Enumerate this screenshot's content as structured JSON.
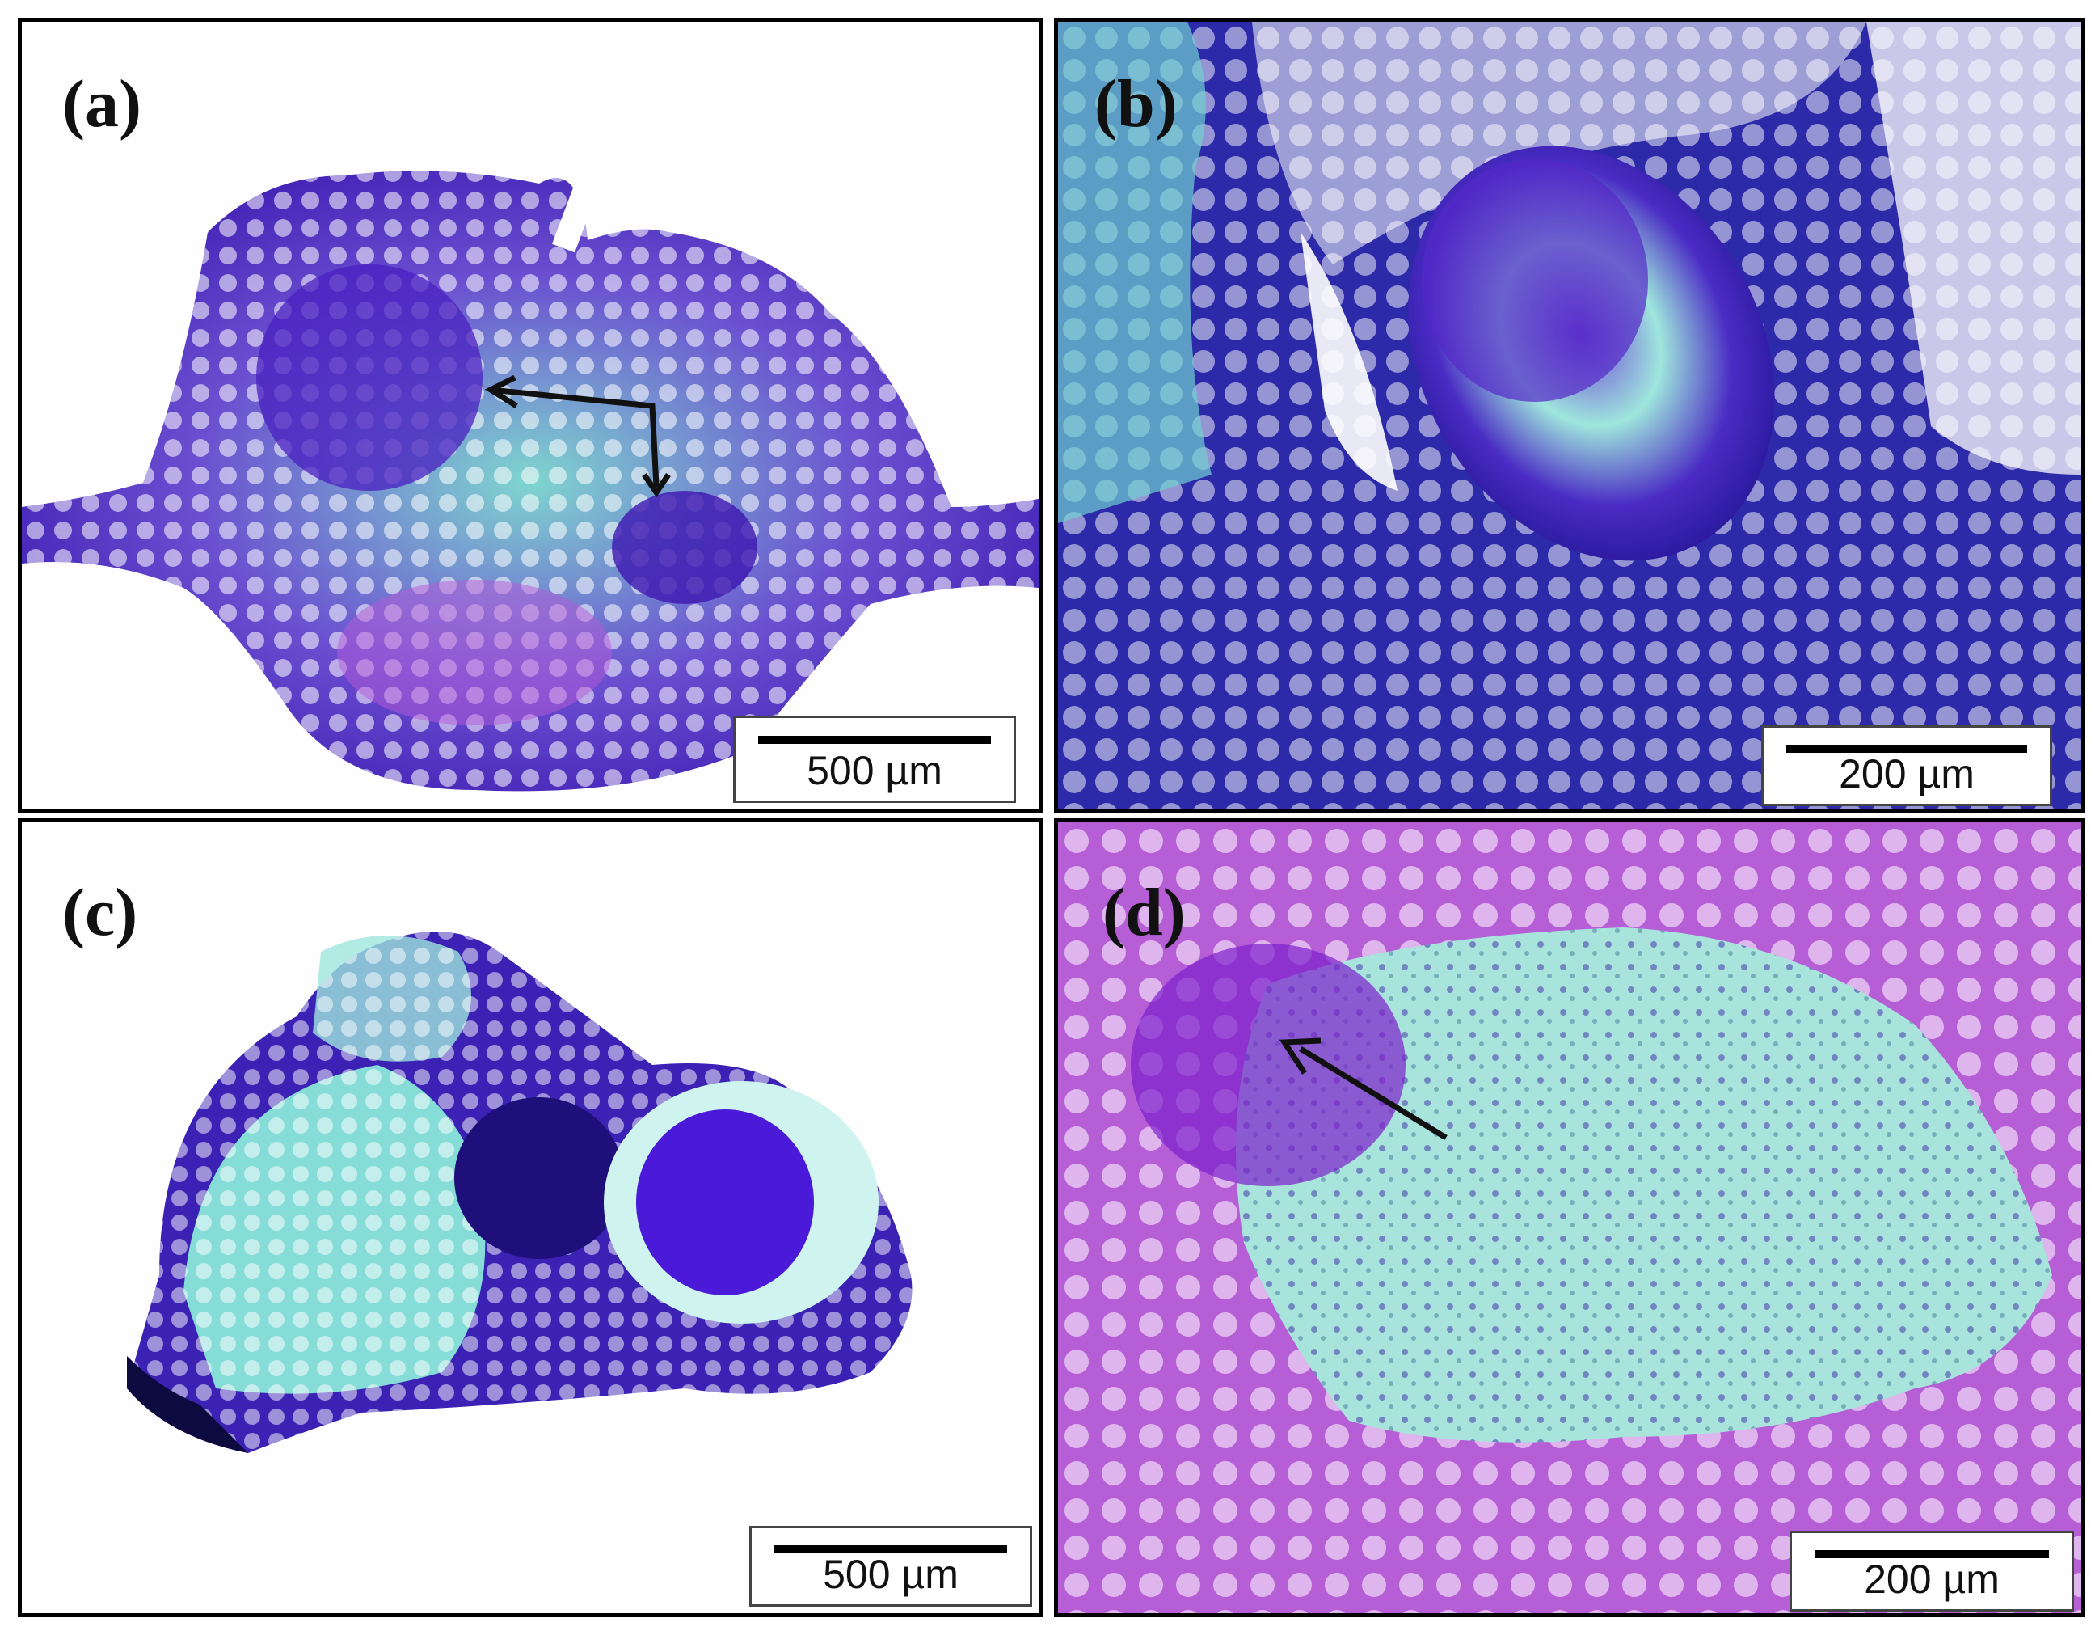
{
  "panels": [
    {
      "label": "(a)",
      "scale": "500 µm"
    },
    {
      "label": "(b)",
      "scale": "200 µm"
    },
    {
      "label": "(c)",
      "scale": "500 µm"
    },
    {
      "label": "(d)",
      "scale": "200 µm"
    }
  ],
  "colors": {
    "stain_purple": "#5a1fc4",
    "stain_violet": "#a347d6",
    "stain_teal": "#8fe3d8",
    "background": "#fefefe",
    "border": "#000000"
  }
}
